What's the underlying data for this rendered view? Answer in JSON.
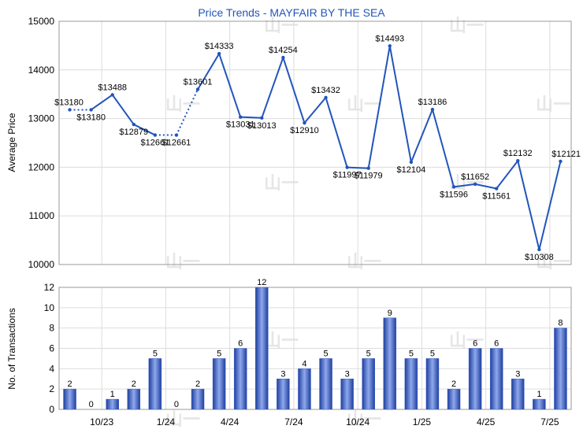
{
  "chart_data": [
    {
      "type": "line",
      "title": "Price Trends - MAYFAIR BY THE SEA",
      "ylabel": "Average Price",
      "ylim": [
        10000,
        15000
      ],
      "yticks": [
        10000,
        11000,
        12000,
        13000,
        14000,
        15000
      ],
      "grid": true,
      "line_color": "#2255bb",
      "points": [
        {
          "i": 0,
          "value": 13180,
          "label": "$13180",
          "interpolated": true
        },
        {
          "i": 1,
          "value": 13180,
          "label": "$13180"
        },
        {
          "i": 2,
          "value": 13488,
          "label": "$13488"
        },
        {
          "i": 3,
          "value": 12879,
          "label": "$12879"
        },
        {
          "i": 4,
          "value": 12661,
          "label": "$12661"
        },
        {
          "i": 5,
          "value": 12661,
          "label": "$12661",
          "interpolated": true
        },
        {
          "i": 6,
          "value": 13601,
          "label": "$13601"
        },
        {
          "i": 7,
          "value": 14333,
          "label": "$14333"
        },
        {
          "i": 8,
          "value": 13031,
          "label": "$13031"
        },
        {
          "i": 9,
          "value": 13013,
          "label": "$13013"
        },
        {
          "i": 10,
          "value": 14254,
          "label": "$14254"
        },
        {
          "i": 11,
          "value": 12910,
          "label": "$12910"
        },
        {
          "i": 12,
          "value": 13432,
          "label": "$13432"
        },
        {
          "i": 13,
          "value": 11997,
          "label": "$11997"
        },
        {
          "i": 14,
          "value": 11979,
          "label": "$11979"
        },
        {
          "i": 15,
          "value": 14493,
          "label": "$14493"
        },
        {
          "i": 16,
          "value": 12104,
          "label": "$12104"
        },
        {
          "i": 17,
          "value": 13186,
          "label": "$13186"
        },
        {
          "i": 18,
          "value": 11596,
          "label": "$11596"
        },
        {
          "i": 19,
          "value": 11652,
          "label": "$11652"
        },
        {
          "i": 20,
          "value": 11561,
          "label": "$11561"
        },
        {
          "i": 21,
          "value": 12132,
          "label": "$12132"
        },
        {
          "i": 22,
          "value": 10308,
          "label": "$10308"
        },
        {
          "i": 23,
          "value": 12121,
          "label": "$12121"
        }
      ]
    },
    {
      "type": "bar",
      "ylabel": "No. of Transactions",
      "ylim": [
        0,
        12
      ],
      "yticks": [
        0,
        2,
        4,
        6,
        8,
        10,
        12
      ],
      "grid": true,
      "bar_color": "#3a5fc8",
      "values": [
        2,
        0,
        1,
        2,
        5,
        0,
        2,
        5,
        6,
        12,
        3,
        4,
        5,
        3,
        5,
        9,
        5,
        5,
        2,
        6,
        6,
        3,
        1,
        8
      ],
      "x_tick_labels": [
        {
          "between": [
            1,
            2
          ],
          "label": "10/23"
        },
        {
          "between": [
            4,
            5
          ],
          "label": "1/24"
        },
        {
          "between": [
            7,
            8
          ],
          "label": "4/24"
        },
        {
          "between": [
            10,
            11
          ],
          "label": "7/24"
        },
        {
          "between": [
            13,
            14
          ],
          "label": "10/24"
        },
        {
          "between": [
            16,
            17
          ],
          "label": "1/25"
        },
        {
          "between": [
            19,
            20
          ],
          "label": "4/25"
        },
        {
          "between": [
            22,
            23
          ],
          "label": "7/25"
        }
      ]
    }
  ],
  "watermark_text": "山一"
}
